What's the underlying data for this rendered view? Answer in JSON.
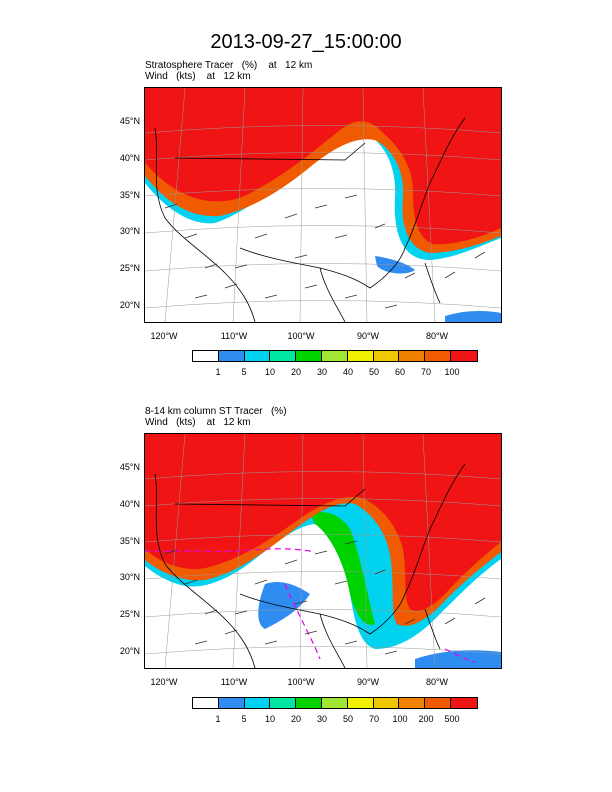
{
  "title": "2013-09-27_15:00:00",
  "colors": {
    "c0": "#ffffff",
    "c1": "#2f8cf0",
    "c2": "#00d2f0",
    "c3": "#00e6a0",
    "c4": "#00d200",
    "c5": "#a0e632",
    "c6": "#f0f000",
    "c7": "#f0c800",
    "c8": "#f08200",
    "c9": "#f05a00",
    "c10": "#f01414"
  },
  "lat_ticks": [
    "45°N",
    "40°N",
    "35°N",
    "30°N",
    "25°N",
    "20°N"
  ],
  "lon_ticks": [
    "120°W",
    "110°W",
    "100°W",
    "90°W",
    "80°W"
  ],
  "panels": [
    {
      "line1": "Stratosphere Tracer   (%)    at   12 km",
      "line2": "Wind   (kts)    at   12 km",
      "colorbar_labels": [
        "1",
        "5",
        "10",
        "20",
        "30",
        "40",
        "50",
        "60",
        "70",
        "100"
      ]
    },
    {
      "line1": "8-14 km column ST Tracer   (%)",
      "line2": "Wind   (kts)    at   12 km",
      "colorbar_labels": [
        "1",
        "5",
        "10",
        "20",
        "30",
        "50",
        "70",
        "100",
        "200",
        "500"
      ]
    }
  ]
}
